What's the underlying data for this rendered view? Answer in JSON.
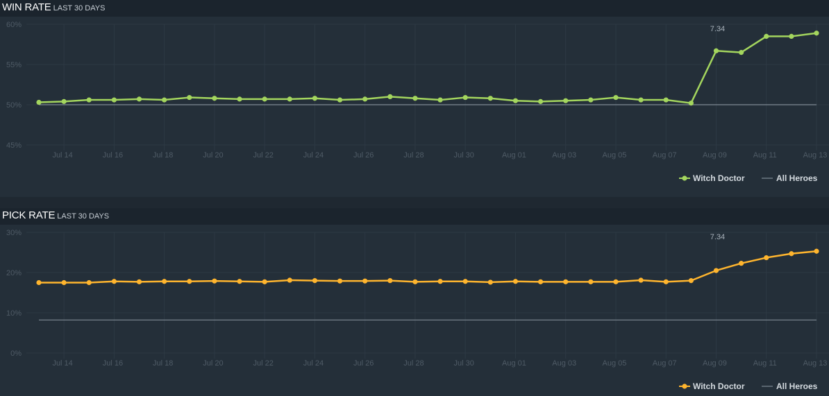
{
  "charts": [
    {
      "title": "WIN RATE",
      "subtitle": "LAST 30 DAYS"
    },
    {
      "title": "PICK RATE",
      "subtitle": "LAST 30 DAYS"
    }
  ],
  "chart_data": [
    {
      "type": "line",
      "title": "WIN RATE",
      "subtitle": "LAST 30 DAYS",
      "x": [
        "Jul 13",
        "Jul 14",
        "Jul 15",
        "Jul 16",
        "Jul 17",
        "Jul 18",
        "Jul 19",
        "Jul 20",
        "Jul 21",
        "Jul 22",
        "Jul 23",
        "Jul 24",
        "Jul 25",
        "Jul 26",
        "Jul 27",
        "Jul 28",
        "Jul 29",
        "Jul 30",
        "Jul 31",
        "Aug 01",
        "Aug 02",
        "Aug 03",
        "Aug 04",
        "Aug 05",
        "Aug 06",
        "Aug 07",
        "Aug 08",
        "Aug 09",
        "Aug 10",
        "Aug 11",
        "Aug 12",
        "Aug 13"
      ],
      "xtick_labels": [
        "Jul 14",
        "Jul 16",
        "Jul 18",
        "Jul 20",
        "Jul 22",
        "Jul 24",
        "Jul 26",
        "Jul 28",
        "Jul 30",
        "Aug 01",
        "Aug 03",
        "Aug 05",
        "Aug 07",
        "Aug 09",
        "Aug 11",
        "Aug 13"
      ],
      "ytick_labels": [
        "60%",
        "55%",
        "50%",
        "45%"
      ],
      "ylim": [
        45,
        60
      ],
      "yticks": [
        60,
        55,
        50,
        45
      ],
      "series": [
        {
          "name": "Witch Doctor",
          "color": "#a4d65e",
          "values": [
            50.3,
            50.4,
            50.6,
            50.6,
            50.7,
            50.6,
            50.9,
            50.8,
            50.7,
            50.7,
            50.7,
            50.8,
            50.6,
            50.7,
            51.0,
            50.8,
            50.6,
            50.9,
            50.8,
            50.5,
            50.4,
            50.5,
            50.6,
            50.9,
            50.6,
            50.6,
            50.2,
            56.7,
            56.5,
            58.5,
            58.5,
            58.9
          ]
        },
        {
          "name": "All Heroes",
          "color": "#7f8a94",
          "values": [
            50,
            50,
            50,
            50,
            50,
            50,
            50,
            50,
            50,
            50,
            50,
            50,
            50,
            50,
            50,
            50,
            50,
            50,
            50,
            50,
            50,
            50,
            50,
            50,
            50,
            50,
            50,
            50,
            50,
            50,
            50,
            50
          ]
        }
      ],
      "annotation": {
        "label": "7.34",
        "at": "Aug 09"
      },
      "legend": "bottom-right"
    },
    {
      "type": "line",
      "title": "PICK RATE",
      "subtitle": "LAST 30 DAYS",
      "x": [
        "Jul 13",
        "Jul 14",
        "Jul 15",
        "Jul 16",
        "Jul 17",
        "Jul 18",
        "Jul 19",
        "Jul 20",
        "Jul 21",
        "Jul 22",
        "Jul 23",
        "Jul 24",
        "Jul 25",
        "Jul 26",
        "Jul 27",
        "Jul 28",
        "Jul 29",
        "Jul 30",
        "Jul 31",
        "Aug 01",
        "Aug 02",
        "Aug 03",
        "Aug 04",
        "Aug 05",
        "Aug 06",
        "Aug 07",
        "Aug 08",
        "Aug 09",
        "Aug 10",
        "Aug 11",
        "Aug 12",
        "Aug 13"
      ],
      "xtick_labels": [
        "Jul 14",
        "Jul 16",
        "Jul 18",
        "Jul 20",
        "Jul 22",
        "Jul 24",
        "Jul 26",
        "Jul 28",
        "Jul 30",
        "Aug 01",
        "Aug 03",
        "Aug 05",
        "Aug 07",
        "Aug 09",
        "Aug 11",
        "Aug 13"
      ],
      "ytick_labels": [
        "30%",
        "20%",
        "10%",
        "0%"
      ],
      "ylim": [
        0,
        30
      ],
      "yticks": [
        30,
        20,
        10,
        0
      ],
      "series": [
        {
          "name": "Witch Doctor",
          "color": "#ffb52e",
          "values": [
            17.5,
            17.5,
            17.5,
            17.8,
            17.7,
            17.8,
            17.8,
            17.9,
            17.8,
            17.7,
            18.1,
            18.0,
            17.9,
            17.9,
            18.0,
            17.7,
            17.8,
            17.8,
            17.6,
            17.8,
            17.7,
            17.7,
            17.7,
            17.7,
            18.1,
            17.7,
            18.0,
            20.5,
            22.3,
            23.7,
            24.7,
            25.3
          ]
        },
        {
          "name": "All Heroes",
          "color": "#7f8a94",
          "values": [
            8.2,
            8.2,
            8.2,
            8.2,
            8.2,
            8.2,
            8.2,
            8.2,
            8.2,
            8.2,
            8.2,
            8.2,
            8.2,
            8.2,
            8.2,
            8.2,
            8.2,
            8.2,
            8.2,
            8.2,
            8.2,
            8.2,
            8.2,
            8.2,
            8.2,
            8.2,
            8.2,
            8.2,
            8.2,
            8.2,
            8.2,
            8.2
          ]
        }
      ],
      "annotation": {
        "label": "7.34",
        "at": "Aug 09"
      },
      "legend": "bottom-right"
    }
  ]
}
